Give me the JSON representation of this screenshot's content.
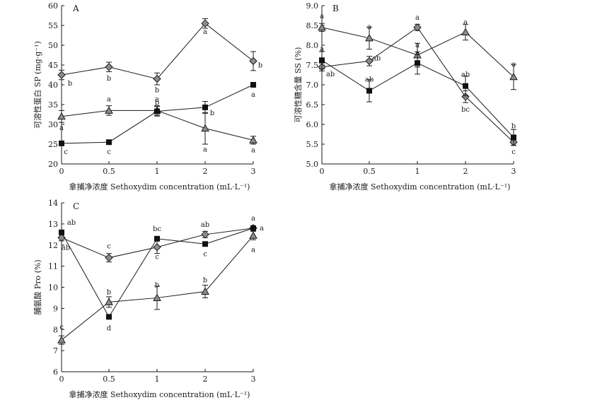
{
  "chart_data": [
    {
      "panel": "A",
      "type": "line",
      "x": [
        0,
        0.5,
        1,
        2,
        3
      ],
      "xlabel": "拿捕净浓度 Sethoxydim concentration (mL·L⁻¹)",
      "ylabel": "可溶性蛋白 SP (mg·g⁻¹)",
      "ylim": [
        20,
        60
      ],
      "yticks": [
        20,
        25,
        30,
        35,
        40,
        45,
        50,
        55,
        60
      ],
      "grid": false,
      "series": [
        {
          "marker": "diamond",
          "color": "#8c8c8c",
          "values": [
            42.5,
            44.5,
            41.5,
            55.5,
            46
          ],
          "errors": [
            1.2,
            1.2,
            1.5,
            1.2,
            2.4
          ],
          "labels": [
            "b",
            "b",
            "b",
            "a",
            "b"
          ]
        },
        {
          "marker": "triangle",
          "color": "#8c8c8c",
          "values": [
            32,
            33.5,
            33.5,
            29,
            26
          ],
          "errors": [
            1.5,
            1.2,
            1.2,
            4,
            1
          ],
          "labels": [
            "a",
            "a",
            "a",
            "a",
            "a"
          ]
        },
        {
          "marker": "square",
          "color": "#111111",
          "values": [
            25.2,
            25.5,
            33.3,
            34.3,
            40
          ],
          "errors": [
            0.5,
            0.5,
            1.2,
            1.5,
            0.5
          ],
          "labels": [
            "c",
            "c",
            "b",
            "b",
            "a"
          ]
        }
      ]
    },
    {
      "panel": "B",
      "type": "line",
      "x": [
        0,
        0.5,
        1,
        2,
        3
      ],
      "xlabel": "拿捕净浓度 Sethoxydim concentration (mL·L⁻¹)",
      "ylabel": "可溶性糖含量 SS (%)",
      "ylim": [
        5.0,
        9.0
      ],
      "yticks": [
        5.0,
        5.5,
        6.0,
        6.5,
        7.0,
        7.5,
        8.0,
        8.5,
        9.0
      ],
      "grid": false,
      "series": [
        {
          "marker": "diamond",
          "color": "#8c8c8c",
          "values": [
            7.45,
            7.6,
            8.45,
            6.7,
            5.55
          ],
          "errors": [
            0.1,
            0.12,
            0.08,
            0.15,
            0.08
          ],
          "labels": [
            "ab",
            "ab",
            "a",
            "bc",
            "c"
          ]
        },
        {
          "marker": "triangle",
          "color": "#8c8c8c",
          "values": [
            8.45,
            8.18,
            7.75,
            8.33,
            7.2
          ],
          "errors": [
            0.1,
            0.28,
            0.3,
            0.2,
            0.32
          ],
          "labels": [
            "a",
            "a",
            "a",
            "a",
            "a"
          ]
        },
        {
          "marker": "square",
          "color": "#111111",
          "values": [
            7.62,
            6.85,
            7.55,
            6.97,
            5.67
          ],
          "errors": [
            0.22,
            0.28,
            0.28,
            0.25,
            0.2
          ],
          "labels": [
            "a",
            "ab",
            "a",
            "ab",
            "b"
          ]
        }
      ]
    },
    {
      "panel": "C",
      "type": "line",
      "x": [
        0,
        0.5,
        1,
        2,
        3
      ],
      "xlabel": "拿捕净浓度 Sethoxydim concentration (mL·L⁻¹)",
      "ylabel": "脯氨酸 Pro (%)",
      "ylim": [
        6,
        14
      ],
      "yticks": [
        6,
        7,
        8,
        9,
        10,
        11,
        12,
        13,
        14
      ],
      "grid": false,
      "series": [
        {
          "marker": "diamond",
          "color": "#8c8c8c",
          "values": [
            12.35,
            11.4,
            11.9,
            12.5,
            12.8
          ],
          "errors": [
            0.15,
            0.2,
            0.3,
            0.15,
            0.1
          ],
          "labels": [
            "ab",
            "c",
            "c",
            "ab",
            "a"
          ]
        },
        {
          "marker": "triangle",
          "color": "#8c8c8c",
          "values": [
            7.5,
            9.3,
            9.5,
            9.8,
            12.45
          ],
          "errors": [
            0.2,
            0.25,
            0.55,
            0.3,
            0.2
          ],
          "labels": [
            "c",
            "b",
            "b",
            "b",
            "a"
          ]
        },
        {
          "marker": "square",
          "color": "#111111",
          "values": [
            12.6,
            8.6,
            12.3,
            12.05,
            12.8
          ],
          "errors": [
            0.1,
            0.1,
            0.1,
            0.1,
            0.1
          ],
          "labels": [
            "ab",
            "d",
            "bc",
            "c",
            "a"
          ]
        }
      ]
    }
  ]
}
